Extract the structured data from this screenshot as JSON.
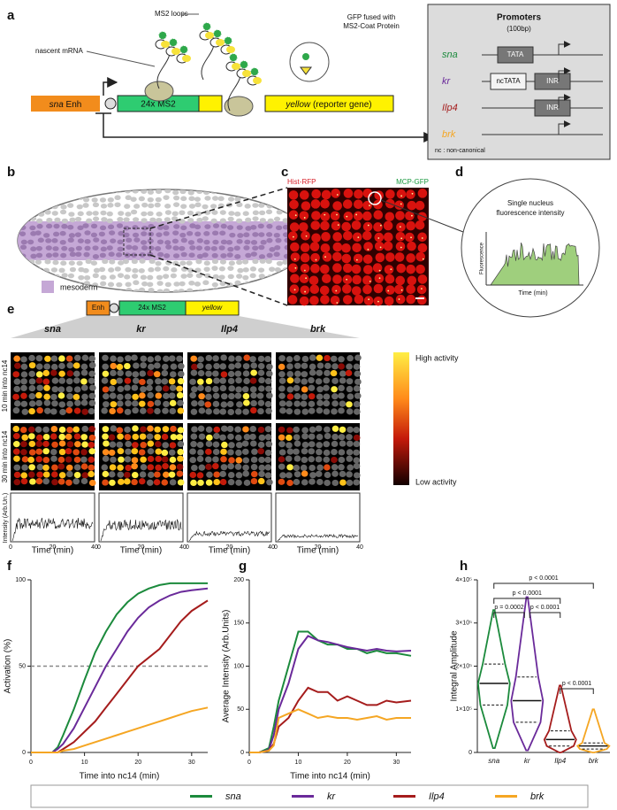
{
  "panel_labels": [
    "a",
    "b",
    "c",
    "d",
    "e",
    "f",
    "g",
    "h"
  ],
  "panel_a": {
    "ms2_loops": "MS2 loops",
    "nascent_mrna": "nascent mRNA",
    "gfp_label": [
      "GFP fused with",
      "MS2-Coat Protein"
    ],
    "enhancer": "sna",
    "enhancer_suffix": "Enh",
    "ms2": "24x MS2",
    "reporter": "yellow",
    "reporter_suffix": "(reporter gene)"
  },
  "promoters": {
    "title": "Promoters",
    "subtitle": "(100bp)",
    "rows": [
      {
        "name": "sna",
        "elements": [
          "TATA"
        ]
      },
      {
        "name": "kr",
        "elements": [
          "ncTATA",
          "INR"
        ]
      },
      {
        "name": "Ilp4",
        "elements": [
          "INR"
        ]
      },
      {
        "name": "brk",
        "elements": []
      }
    ],
    "note": "nc : non-canonical"
  },
  "panel_b": {
    "legend": "mesoderm"
  },
  "panel_c": {
    "channels": [
      "Hist-RFP",
      "MCP-GFP"
    ]
  },
  "panel_d": {
    "title": [
      "Single nucleus",
      "fluorescence intensity"
    ],
    "y_label": "Fluorescence",
    "x_label": "Time (min)"
  },
  "panel_e": {
    "construct": [
      "Enh",
      "24x MS2",
      "yellow"
    ],
    "columns": [
      "sna",
      "kr",
      "Ilp4",
      "brk"
    ],
    "rows": [
      "10 min into nc14",
      "30 min into nc14"
    ],
    "scale": [
      "High activity",
      "Low activity"
    ],
    "trace_y_label": "Intensity (Arb.Un.)",
    "trace_x_label": "Time (min)",
    "trace_xticks": [
      0,
      20,
      40
    ]
  },
  "chart_data": [
    {
      "type": "line",
      "x_label": "Time into nc14 (min)",
      "y_label": "Activation (%)",
      "x": [
        0,
        2,
        4,
        5,
        6,
        8,
        10,
        12,
        14,
        16,
        18,
        20,
        22,
        24,
        26,
        28,
        30,
        33
      ],
      "series": [
        {
          "name": "sna",
          "color": "#1b8a3c",
          "values": [
            0,
            0,
            0,
            3,
            10,
            25,
            42,
            58,
            70,
            80,
            87,
            92,
            95,
            97,
            98,
            98,
            98,
            98
          ]
        },
        {
          "name": "kr",
          "color": "#6a2a9a",
          "values": [
            0,
            0,
            0,
            2,
            5,
            14,
            26,
            38,
            50,
            60,
            70,
            78,
            84,
            88,
            91,
            93,
            94,
            95
          ]
        },
        {
          "name": "Ilp4",
          "color": "#a51c1c",
          "values": [
            0,
            0,
            0,
            0,
            2,
            6,
            12,
            18,
            26,
            34,
            42,
            50,
            55,
            60,
            68,
            76,
            82,
            88
          ]
        },
        {
          "name": "brk",
          "color": "#f5a623",
          "values": [
            0,
            0,
            0,
            0,
            1,
            2,
            4,
            6,
            8,
            10,
            12,
            14,
            16,
            18,
            20,
            22,
            24,
            26
          ]
        }
      ],
      "reference_line": 50,
      "xlim": [
        0,
        33
      ],
      "xticks": [
        0,
        10,
        20,
        30
      ],
      "ylim": [
        0,
        100
      ],
      "yticks": [
        0,
        50,
        100
      ]
    },
    {
      "type": "line",
      "x_label": "Time into nc14 (min)",
      "y_label": "Average Intensity (Arb.Units)",
      "x": [
        0,
        2,
        4,
        5,
        6,
        8,
        10,
        12,
        14,
        16,
        18,
        20,
        22,
        24,
        26,
        28,
        30,
        33
      ],
      "series": [
        {
          "color": "#1b8a3c",
          "values": [
            0,
            0,
            5,
            30,
            60,
            100,
            140,
            140,
            130,
            125,
            125,
            120,
            120,
            115,
            118,
            115,
            115,
            112
          ]
        },
        {
          "color": "#6a2a9a",
          "values": [
            0,
            0,
            3,
            20,
            50,
            80,
            120,
            135,
            130,
            128,
            125,
            122,
            120,
            118,
            120,
            118,
            117,
            118
          ]
        },
        {
          "color": "#a51c1c",
          "values": [
            0,
            0,
            2,
            10,
            30,
            40,
            60,
            75,
            70,
            70,
            60,
            65,
            60,
            55,
            55,
            60,
            58,
            60
          ]
        },
        {
          "color": "#f5a623",
          "values": [
            0,
            0,
            2,
            8,
            40,
            45,
            50,
            45,
            40,
            42,
            40,
            40,
            38,
            40,
            42,
            38,
            40,
            40
          ]
        }
      ],
      "xlim": [
        0,
        33
      ],
      "xticks": [
        0,
        10,
        20,
        30
      ],
      "ylim": [
        0,
        200
      ],
      "yticks": [
        0,
        50,
        100,
        150,
        200
      ]
    },
    {
      "type": "violin",
      "y_label": "Integral Amplitude",
      "categories": [
        "sna",
        "kr",
        "Ilp4",
        "brk"
      ],
      "colors": [
        "#1b8a3c",
        "#6a2a9a",
        "#a51c1c",
        "#f5a623"
      ],
      "min": [
        10000,
        5000,
        0,
        0
      ],
      "q1": [
        110000,
        70000,
        15000,
        8000
      ],
      "median": [
        160000,
        120000,
        30000,
        15000
      ],
      "q3": [
        205000,
        175000,
        50000,
        22000
      ],
      "max": [
        330000,
        360000,
        155000,
        100000
      ],
      "ylim": [
        0,
        400000
      ],
      "yticks": [
        0,
        {
          "value": 100000,
          "label": "1×10⁵"
        },
        {
          "value": 200000,
          "label": "2×10⁵"
        },
        {
          "value": 300000,
          "label": "3×10⁵"
        },
        {
          "value": 400000,
          "label": "4×10⁵"
        }
      ],
      "comparisons": [
        {
          "pair": [
            "sna",
            "kr"
          ],
          "label": "p = 0.0002"
        },
        {
          "pair": [
            "kr",
            "Ilp4"
          ],
          "label": "p < 0.0001"
        },
        {
          "pair": [
            "sna",
            "Ilp4"
          ],
          "label": "p < 0.0001"
        },
        {
          "pair": [
            "sna",
            "brk"
          ],
          "label": "p < 0.0001"
        },
        {
          "pair": [
            "Ilp4",
            "brk"
          ],
          "label": "p < 0.0001"
        }
      ]
    }
  ]
}
